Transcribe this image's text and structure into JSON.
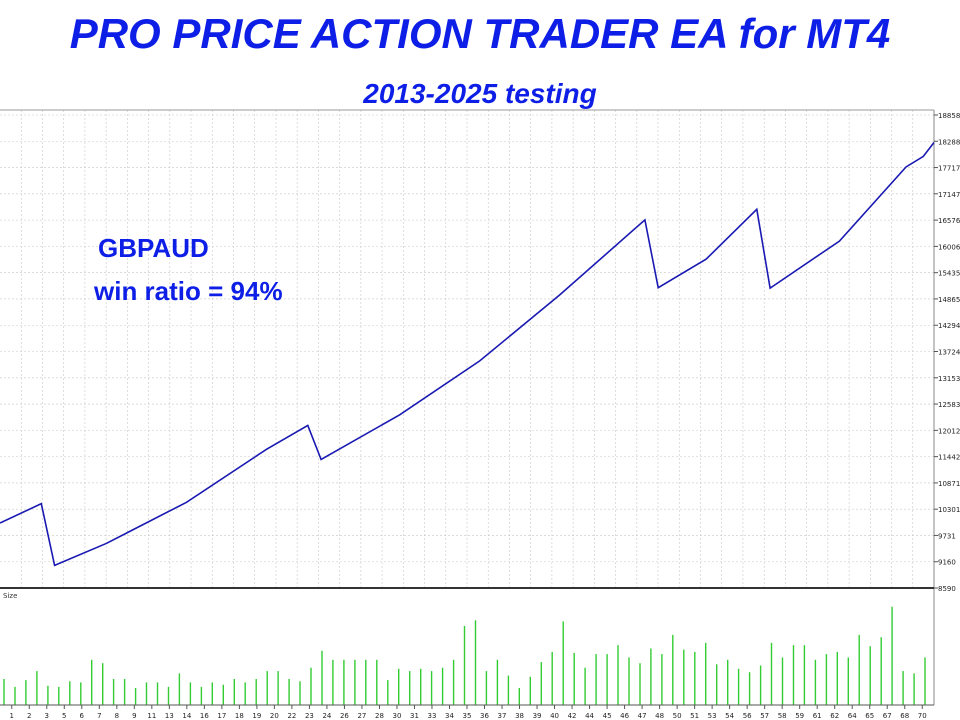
{
  "header": {
    "title": "PRO PRICE ACTION TRADER EA for MT4",
    "subtitle": "2013-2025 testing"
  },
  "annotation": {
    "line1": "GBPAUD",
    "line2": "win ratio = 94%"
  },
  "colors": {
    "title": "#0d1ee6",
    "line": "#1a1ab3",
    "volume": "#33cc33",
    "grid": "#c8c8c8"
  },
  "chart_data": [
    {
      "type": "line",
      "title": "",
      "ylim": [
        8590,
        18858
      ],
      "yticks": [
        18858,
        18288,
        17717,
        17147,
        16576,
        16006,
        15435,
        14865,
        14294,
        13724,
        13153,
        12583,
        12012,
        11442,
        10871,
        10301,
        9731,
        9160,
        8590
      ],
      "x": [
        0,
        3.1,
        4.1,
        8,
        14,
        20,
        23.1,
        24.1,
        30,
        36,
        42,
        48.4,
        49.4,
        53,
        56.8,
        57.8,
        63,
        68,
        69.3,
        70.1
      ],
      "series": [
        {
          "values": [
            10000,
            10420,
            9080,
            9560,
            10450,
            11600,
            12120,
            11380,
            12350,
            13520,
            14950,
            16580,
            15110,
            15730,
            16810,
            15100,
            16120,
            17730,
            17960,
            18260
          ]
        }
      ],
      "grid": true
    },
    {
      "type": "bar",
      "label": "Size",
      "xticks": [
        "1",
        "2",
        "3",
        "5",
        "6",
        "7",
        "8",
        "9",
        "11",
        "13",
        "14",
        "16",
        "17",
        "18",
        "19",
        "20",
        "22",
        "23",
        "24",
        "26",
        "27",
        "28",
        "30",
        "31",
        "33",
        "34",
        "35",
        "36",
        "37",
        "38",
        "39",
        "40",
        "42",
        "44",
        "45",
        "46",
        "47",
        "48",
        "50",
        "51",
        "53",
        "54",
        "56",
        "57",
        "58",
        "59",
        "61",
        "62",
        "64",
        "65",
        "67",
        "68",
        "70"
      ],
      "values": [
        0.23,
        0.16,
        0.22,
        0.3,
        0.17,
        0.16,
        0.21,
        0.2,
        0.4,
        0.37,
        0.23,
        0.23,
        0.15,
        0.2,
        0.2,
        0.16,
        0.28,
        0.2,
        0.16,
        0.2,
        0.18,
        0.23,
        0.2,
        0.23,
        0.3,
        0.3,
        0.23,
        0.21,
        0.33,
        0.48,
        0.4,
        0.4,
        0.4,
        0.4,
        0.4,
        0.22,
        0.32,
        0.3,
        0.32,
        0.3,
        0.33,
        0.4,
        0.7,
        0.75,
        0.3,
        0.4,
        0.26,
        0.15,
        0.25,
        0.38,
        0.47,
        0.74,
        0.46,
        0.33,
        0.45,
        0.45,
        0.53,
        0.42,
        0.37,
        0.5,
        0.45,
        0.62,
        0.49,
        0.47,
        0.55,
        0.36,
        0.4,
        0.32,
        0.29,
        0.35,
        0.55,
        0.42,
        0.53,
        0.53,
        0.4,
        0.45,
        0.47,
        0.42,
        0.62,
        0.52,
        0.6,
        0.87,
        0.3,
        0.28,
        0.42
      ],
      "ylim": [
        0,
        1
      ]
    }
  ]
}
